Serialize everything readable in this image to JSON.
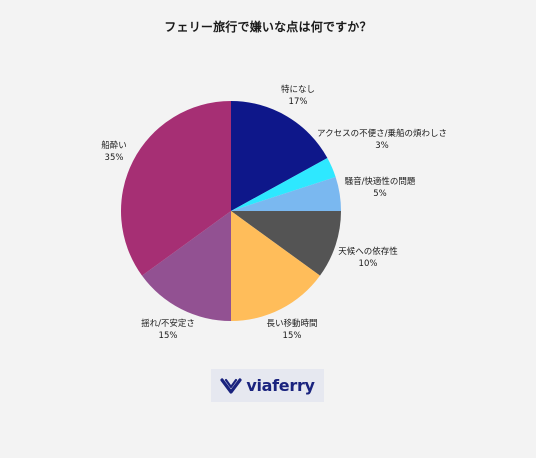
{
  "chart_data": {
    "type": "pie",
    "title": "フェリー旅行で嫌いな点は何ですか？",
    "slices": [
      {
        "label": "特になし",
        "value": 17,
        "pct_label": "17%",
        "color": "#0e178a"
      },
      {
        "label": "アクセスの不便さ/乗船の煩わしさ",
        "value": 3,
        "pct_label": "3%",
        "color": "#2ee8ff"
      },
      {
        "label": "騒音/快適性の問題",
        "value": 5,
        "pct_label": "5%",
        "color": "#7ab8f0"
      },
      {
        "label": "天候への依存性",
        "value": 10,
        "pct_label": "10%",
        "color": "#545454"
      },
      {
        "label": "長い移動時間",
        "value": 15,
        "pct_label": "15%",
        "color": "#ffbd5a"
      },
      {
        "label": "揺れ/不安定さ",
        "value": 15,
        "pct_label": "15%",
        "color": "#925192"
      },
      {
        "label": "船酔い",
        "value": 35,
        "pct_label": "35%",
        "color": "#a62f74"
      }
    ],
    "start_angle_deg": 0,
    "direction": "clockwise"
  },
  "logo": {
    "text": "viaferry",
    "color": "#1a237e",
    "icon": "viaferry-arrows-icon"
  }
}
